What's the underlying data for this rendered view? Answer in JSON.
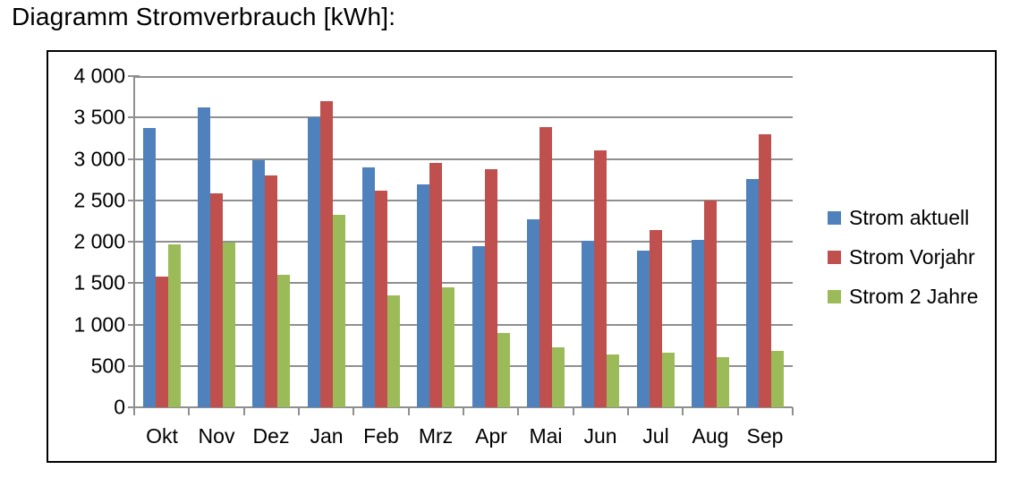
{
  "chart_data": {
    "type": "bar",
    "title": "Diagramm Stromverbrauch [kWh]:",
    "categories": [
      "Okt",
      "Nov",
      "Dez",
      "Jan",
      "Feb",
      "Mrz",
      "Apr",
      "Mai",
      "Jun",
      "Jul",
      "Aug",
      "Sep"
    ],
    "series": [
      {
        "name": "Strom aktuell",
        "color": "#4F81BD",
        "values": [
          3370,
          3620,
          2980,
          3500,
          2900,
          2690,
          1950,
          2270,
          2010,
          1890,
          2020,
          2760
        ]
      },
      {
        "name": "Strom Vorjahr",
        "color": "#C0504D",
        "values": [
          1580,
          2580,
          2800,
          3700,
          2620,
          2950,
          2880,
          3380,
          3100,
          2140,
          2500,
          3300
        ]
      },
      {
        "name": "Strom 2 Jahre",
        "color": "#9BBB59",
        "values": [
          1970,
          1990,
          1600,
          2320,
          1350,
          1450,
          900,
          720,
          640,
          660,
          600,
          680
        ]
      }
    ],
    "xlabel": "",
    "ylabel": "",
    "ylim": [
      0,
      4000
    ],
    "y_tick_step": 500,
    "y_tick_labels": [
      "0",
      "500",
      "1 000",
      "1 500",
      "2 000",
      "2 500",
      "3 000",
      "3 500",
      "4 000"
    ],
    "grid": true,
    "legend_position": "right",
    "axis_color": "#8f8f8f",
    "text_color": "#000000"
  }
}
